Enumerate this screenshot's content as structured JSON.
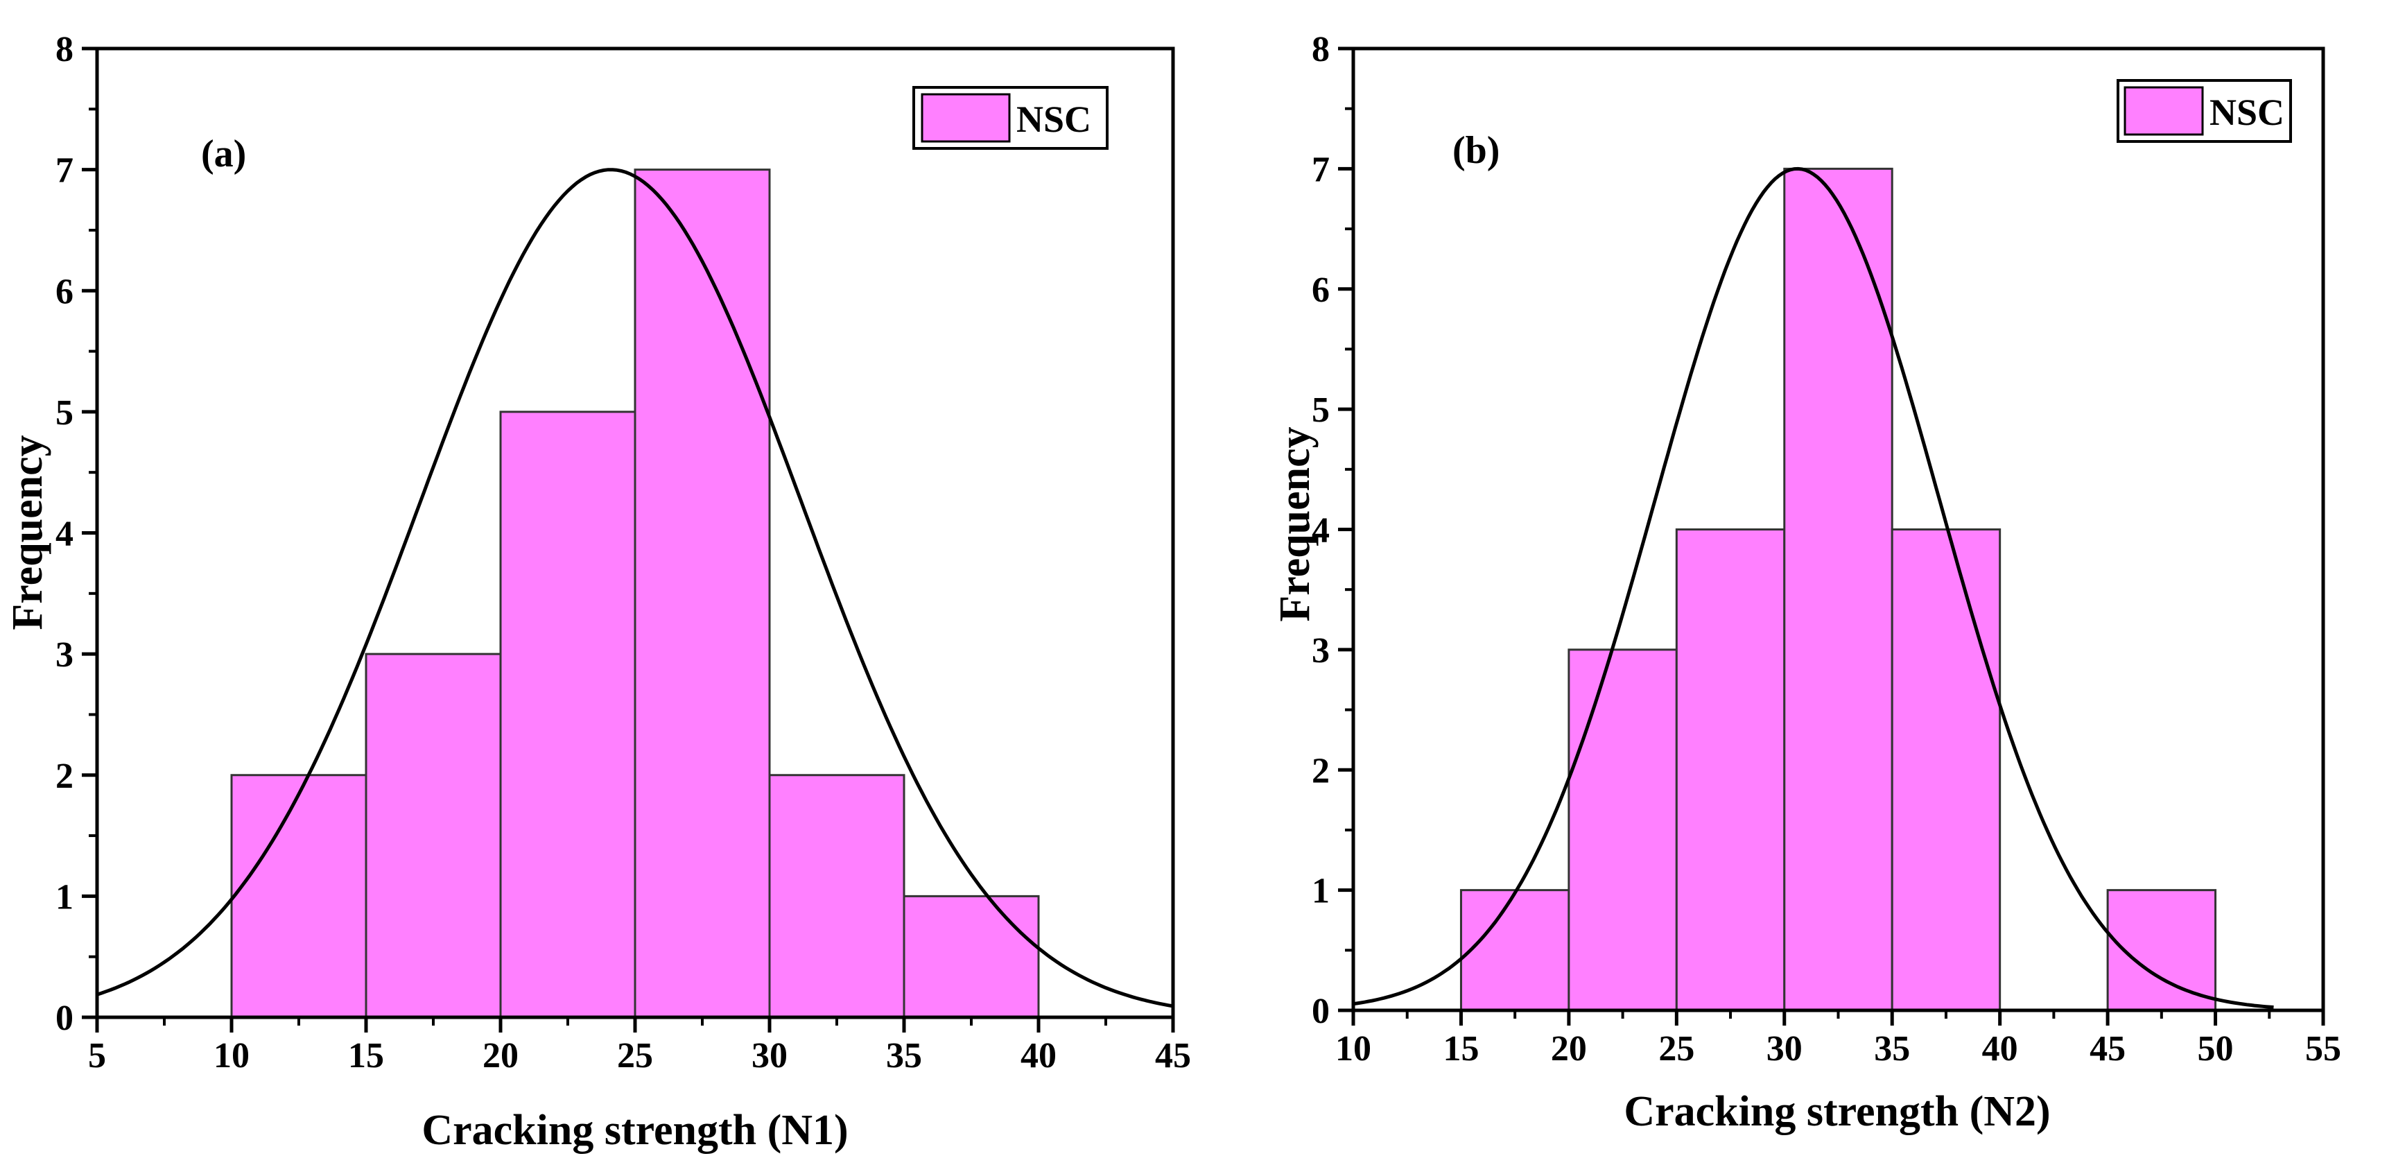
{
  "chart_data": [
    {
      "type": "bar",
      "panel_label": "(a)",
      "title": "",
      "xlabel": "Cracking strength (N1)",
      "ylabel": "Frequency",
      "xlim": [
        5,
        45
      ],
      "ylim": [
        0,
        8
      ],
      "xticks": [
        5,
        10,
        15,
        20,
        25,
        30,
        35,
        40,
        45
      ],
      "yticks": [
        0,
        1,
        2,
        3,
        4,
        5,
        6,
        7,
        8
      ],
      "bins": [
        [
          10,
          15
        ],
        [
          15,
          20
        ],
        [
          20,
          25
        ],
        [
          25,
          30
        ],
        [
          30,
          35
        ],
        [
          35,
          40
        ]
      ],
      "values": [
        2,
        3,
        5,
        7,
        2,
        1
      ],
      "series": [
        {
          "name": "NSC",
          "type": "histogram",
          "color": "#ff80ff"
        },
        {
          "name": "normal-fit",
          "type": "line",
          "mean": 24.1,
          "sd": 7.1,
          "peak": 7.0,
          "color": "#000000"
        }
      ],
      "legend": {
        "entries": [
          "NSC"
        ],
        "position": "top-right"
      },
      "grid": false
    },
    {
      "type": "bar",
      "panel_label": "(b)",
      "title": "",
      "xlabel": "Cracking strength (N2)",
      "ylabel": "Frequency",
      "xlim": [
        10,
        55
      ],
      "ylim": [
        0,
        8
      ],
      "xticks": [
        10,
        15,
        20,
        25,
        30,
        35,
        40,
        45,
        50,
        55
      ],
      "yticks": [
        0,
        1,
        2,
        3,
        4,
        5,
        6,
        7,
        8
      ],
      "bins": [
        [
          15,
          20
        ],
        [
          20,
          25
        ],
        [
          25,
          30
        ],
        [
          30,
          35
        ],
        [
          35,
          40
        ],
        [
          40,
          45
        ],
        [
          45,
          50
        ]
      ],
      "values": [
        1,
        3,
        4,
        7,
        4,
        0,
        1
      ],
      "series": [
        {
          "name": "NSC",
          "type": "histogram",
          "color": "#ff80ff"
        },
        {
          "name": "normal-fit",
          "type": "line",
          "mean": 30.6,
          "sd": 6.6,
          "peak": 7.0,
          "xmax": 52.7,
          "color": "#000000"
        }
      ],
      "legend": {
        "entries": [
          "NSC"
        ],
        "position": "top-right"
      },
      "grid": false
    }
  ]
}
